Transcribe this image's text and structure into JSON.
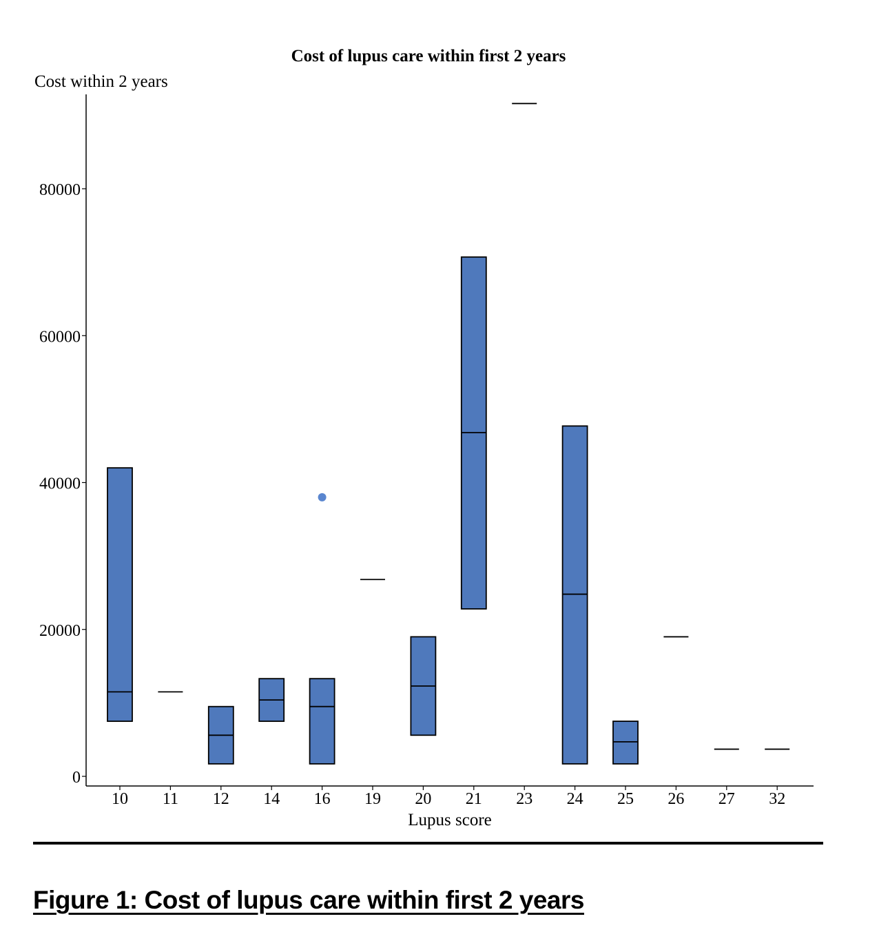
{
  "chart_data": {
    "type": "box",
    "title": "Cost of lupus care within first 2 years",
    "xlabel": "Lupus score",
    "ylabel": "Cost within 2 years",
    "ylim": [
      0,
      94000
    ],
    "yticks": [
      0,
      20000,
      40000,
      60000,
      80000
    ],
    "categories": [
      "10",
      "11",
      "12",
      "14",
      "16",
      "19",
      "20",
      "21",
      "23",
      "24",
      "25",
      "26",
      "27",
      "32"
    ],
    "boxes": [
      {
        "x": "10",
        "q1": 7500,
        "median": 11500,
        "q3": 42000
      },
      {
        "x": "11",
        "q1": 11500,
        "median": 11500,
        "q3": 11500
      },
      {
        "x": "12",
        "q1": 1700,
        "median": 5600,
        "q3": 9500
      },
      {
        "x": "14",
        "q1": 7500,
        "median": 10400,
        "q3": 13300
      },
      {
        "x": "16",
        "q1": 1700,
        "median": 9500,
        "q3": 13300
      },
      {
        "x": "19",
        "q1": 26800,
        "median": 26800,
        "q3": 26800
      },
      {
        "x": "20",
        "q1": 5600,
        "median": 12300,
        "q3": 19000
      },
      {
        "x": "21",
        "q1": 22800,
        "median": 46800,
        "q3": 70700
      },
      {
        "x": "23",
        "q1": 91600,
        "median": 91600,
        "q3": 91600
      },
      {
        "x": "24",
        "q1": 1700,
        "median": 24800,
        "q3": 47700
      },
      {
        "x": "25",
        "q1": 1700,
        "median": 4700,
        "q3": 7500
      },
      {
        "x": "26",
        "q1": 19000,
        "median": 19000,
        "q3": 19000
      },
      {
        "x": "27",
        "q1": 3700,
        "median": 3700,
        "q3": 3700
      },
      {
        "x": "32",
        "q1": 3700,
        "median": 3700,
        "q3": 3700
      }
    ],
    "outliers": [
      {
        "x": "16",
        "y": 38000
      }
    ],
    "grid": false,
    "colors": {
      "box_fill": "#4f79bc",
      "outlier": "#5a86cf",
      "line": "#000000"
    }
  },
  "caption": "Figure 1: Cost of lupus care within first 2 years"
}
